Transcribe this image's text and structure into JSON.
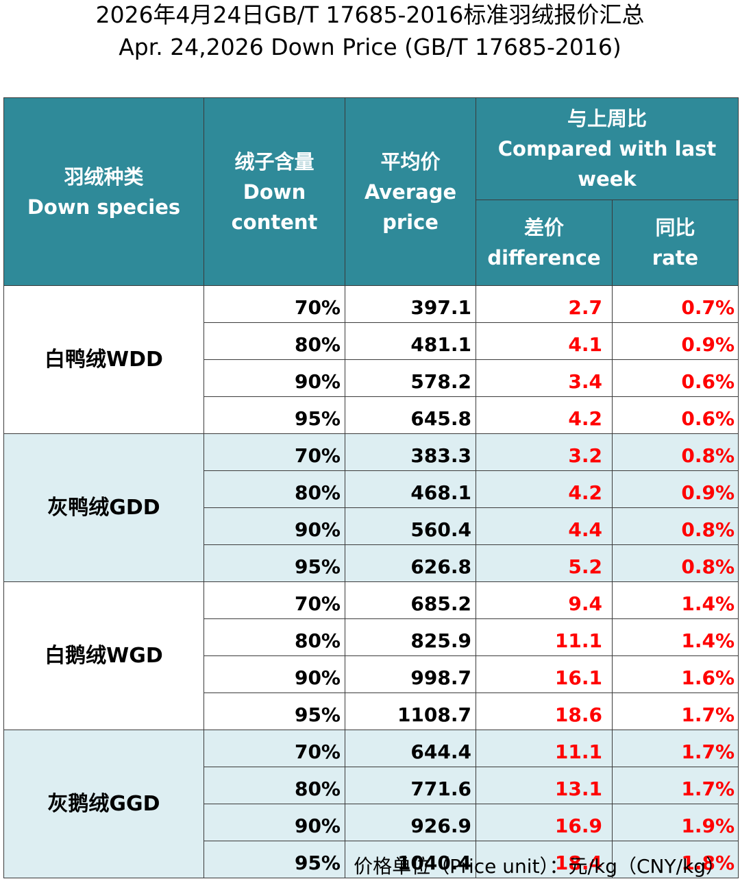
{
  "title_cn": "2026年4月24日GB/T 17685-2016标准羽绒报价汇总",
  "title_en": "Apr. 24,2026 Down Price (GB/T 17685-2016)",
  "headers": {
    "species_cn": "羽绒种类",
    "species_en": "Down species",
    "content_cn": "绒子含量",
    "content_en_1": "Down",
    "content_en_2": "content",
    "avg_cn": "平均价",
    "avg_en_1": "Average",
    "avg_en_2": "price",
    "compare_cn": "与上周比",
    "compare_en_1": "Compared with last",
    "compare_en_2": "week",
    "diff_cn": "差价",
    "diff_en": "difference",
    "rate_cn": "同比",
    "rate_en": "rate"
  },
  "groups": [
    {
      "species": "白鸭绒WDD",
      "rows": [
        {
          "content": "70%",
          "avg": "397.1",
          "diff": "2.7",
          "rate": "0.7%"
        },
        {
          "content": "80%",
          "avg": "481.1",
          "diff": "4.1",
          "rate": "0.9%"
        },
        {
          "content": "90%",
          "avg": "578.2",
          "diff": "3.4",
          "rate": "0.6%"
        },
        {
          "content": "95%",
          "avg": "645.8",
          "diff": "4.2",
          "rate": "0.6%"
        }
      ]
    },
    {
      "species": "灰鸭绒GDD",
      "rows": [
        {
          "content": "70%",
          "avg": "383.3",
          "diff": "3.2",
          "rate": "0.8%"
        },
        {
          "content": "80%",
          "avg": "468.1",
          "diff": "4.2",
          "rate": "0.9%"
        },
        {
          "content": "90%",
          "avg": "560.4",
          "diff": "4.4",
          "rate": "0.8%"
        },
        {
          "content": "95%",
          "avg": "626.8",
          "diff": "5.2",
          "rate": "0.8%"
        }
      ]
    },
    {
      "species": "白鹅绒WGD",
      "rows": [
        {
          "content": "70%",
          "avg": "685.2",
          "diff": "9.4",
          "rate": "1.4%"
        },
        {
          "content": "80%",
          "avg": "825.9",
          "diff": "11.1",
          "rate": "1.4%"
        },
        {
          "content": "90%",
          "avg": "998.7",
          "diff": "16.1",
          "rate": "1.6%"
        },
        {
          "content": "95%",
          "avg": "1108.7",
          "diff": "18.6",
          "rate": "1.7%"
        }
      ]
    },
    {
      "species": "灰鹅绒GGD",
      "rows": [
        {
          "content": "70%",
          "avg": "644.4",
          "diff": "11.1",
          "rate": "1.7%"
        },
        {
          "content": "80%",
          "avg": "771.6",
          "diff": "13.1",
          "rate": "1.7%"
        },
        {
          "content": "90%",
          "avg": "926.9",
          "diff": "16.9",
          "rate": "1.9%"
        },
        {
          "content": "95%",
          "avg": "1040.4",
          "diff": "18.4",
          "rate": "1.8%"
        }
      ]
    }
  ],
  "unit_note": "价格单位（Price unit）：元/kg（CNY/kg）",
  "colors": {
    "header_bg": "#2f8a99",
    "band_bg": "#ddeef2",
    "change_text": "#ff0000"
  }
}
